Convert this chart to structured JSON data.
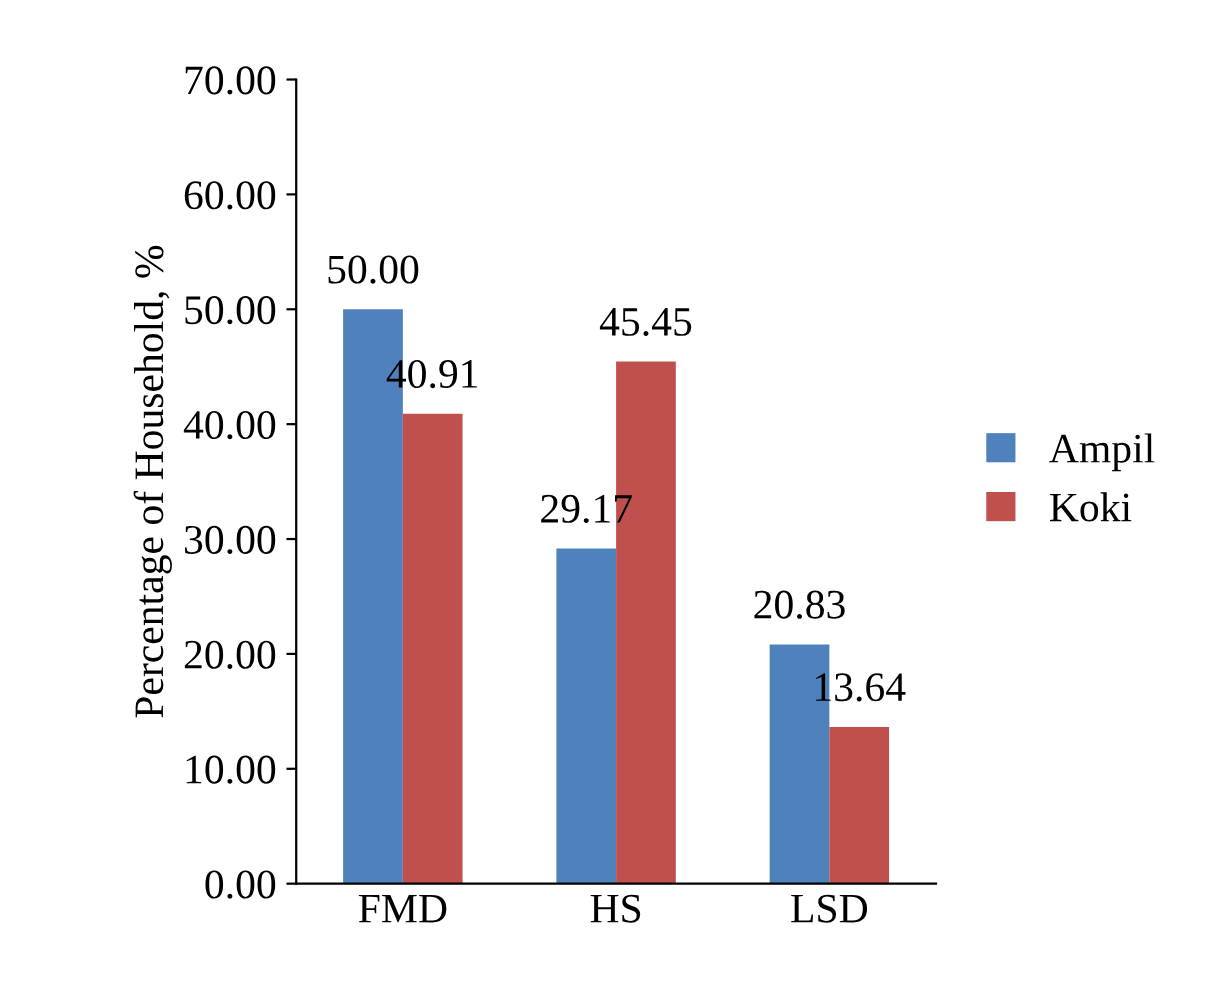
{
  "chart_data": {
    "type": "bar",
    "ylabel": "Percentage of Household, %",
    "categories": [
      "FMD",
      "HS",
      "LSD"
    ],
    "series": [
      {
        "name": "Ampil",
        "color": "#4f81bd",
        "values": [
          50.0,
          29.17,
          20.83
        ],
        "value_labels": [
          "50.00",
          "29.17",
          "20.83"
        ]
      },
      {
        "name": "Koki",
        "color": "#c0504d",
        "values": [
          40.91,
          45.45,
          13.64
        ],
        "value_labels": [
          "40.91",
          "45.45",
          "13.64"
        ]
      }
    ],
    "ylim": [
      0,
      70
    ],
    "yticks": [
      {
        "value": 0,
        "label": "0.00"
      },
      {
        "value": 10,
        "label": "10.00"
      },
      {
        "value": 20,
        "label": "20.00"
      },
      {
        "value": 30,
        "label": "30.00"
      },
      {
        "value": 40,
        "label": "40.00"
      },
      {
        "value": 50,
        "label": "50.00"
      },
      {
        "value": 60,
        "label": "60.00"
      },
      {
        "value": 70,
        "label": "70.00"
      }
    ],
    "legend": "right",
    "grid": false
  }
}
